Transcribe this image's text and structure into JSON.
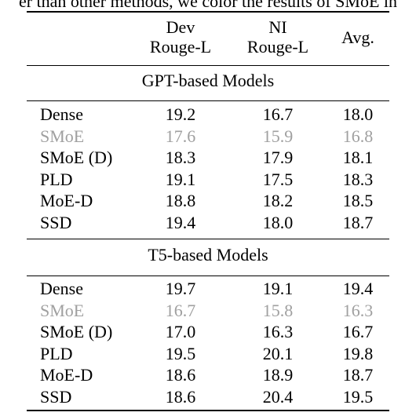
{
  "caption_fragment": "er than other methods, we color the results of SMoE in",
  "header": {
    "dev_line1": "Dev",
    "dev_line2": "Rouge-L",
    "ni_line1": "NI",
    "ni_line2": "Rouge-L",
    "avg": "Avg."
  },
  "sections": [
    {
      "title": "GPT-based Models",
      "rows": [
        {
          "model": "Dense",
          "dev": "19.2",
          "ni": "16.7",
          "avg": "18.0",
          "muted": false
        },
        {
          "model": "SMoE",
          "dev": "17.6",
          "ni": "15.9",
          "avg": "16.8",
          "muted": true
        },
        {
          "model": "SMoE (D)",
          "dev": "18.3",
          "ni": "17.9",
          "avg": "18.1",
          "muted": false
        },
        {
          "model": "PLD",
          "dev": "19.1",
          "ni": "17.5",
          "avg": "18.3",
          "muted": false
        },
        {
          "model": "MoE-D",
          "dev": "18.8",
          "ni": "18.2",
          "avg": "18.5",
          "muted": false
        },
        {
          "model": "SSD",
          "dev": "19.4",
          "ni": "18.0",
          "avg": "18.7",
          "muted": false
        }
      ]
    },
    {
      "title": "T5-based Models",
      "rows": [
        {
          "model": "Dense",
          "dev": "19.7",
          "ni": "19.1",
          "avg": "19.4",
          "muted": false
        },
        {
          "model": "SMoE",
          "dev": "16.7",
          "ni": "15.8",
          "avg": "16.3",
          "muted": true
        },
        {
          "model": "SMoE (D)",
          "dev": "17.0",
          "ni": "16.3",
          "avg": "16.7",
          "muted": false
        },
        {
          "model": "PLD",
          "dev": "19.5",
          "ni": "20.1",
          "avg": "19.8",
          "muted": false
        },
        {
          "model": "MoE-D",
          "dev": "18.6",
          "ni": "18.9",
          "avg": "18.7",
          "muted": false
        },
        {
          "model": "SSD",
          "dev": "18.6",
          "ni": "20.4",
          "avg": "19.5",
          "muted": false
        }
      ]
    }
  ]
}
